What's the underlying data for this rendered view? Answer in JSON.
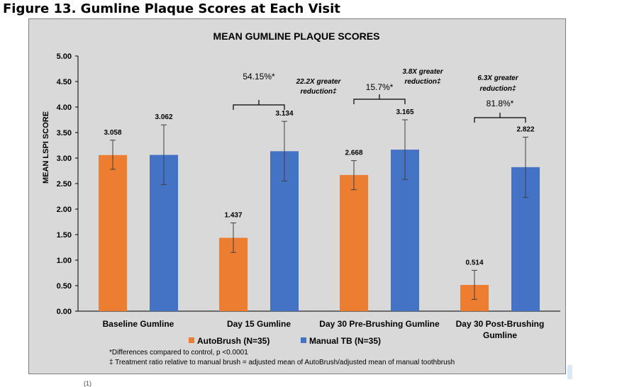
{
  "figure_title": "Figure 13. Gumline Plaque Scores at Each Visit",
  "chart_data": {
    "type": "bar",
    "title": "MEAN GUMLINE PLAQUE SCORES",
    "ylabel": "MEAN LSPI SCORE",
    "xlabel": "",
    "ylim": [
      0,
      5
    ],
    "yticks": [
      "0.00",
      "0.50",
      "1.00",
      "1.50",
      "2.00",
      "2.50",
      "3.00",
      "3.50",
      "4.00",
      "4.50",
      "5.00"
    ],
    "categories": [
      "Baseline Gumline",
      "Day 15 Gumline",
      "Day 30 Pre-Brushing Gumline",
      "Day 30  Post-Brushing Gumline"
    ],
    "series": [
      {
        "name": "AutoBrush (N=35)",
        "color": "#ed7d31",
        "values": [
          3.058,
          1.437,
          2.668,
          0.514
        ],
        "labels": [
          "3.058",
          "1.437",
          "2.668",
          "0.514"
        ],
        "error_low": [
          2.78,
          1.15,
          2.38,
          0.23
        ],
        "error_high": [
          3.35,
          1.73,
          2.95,
          0.8
        ]
      },
      {
        "name": "Manual TB (N=35)",
        "color": "#4472c4",
        "values": [
          3.062,
          3.134,
          3.165,
          2.822
        ],
        "labels": [
          "3.062",
          "3.134",
          "3.165",
          "2.822"
        ],
        "error_low": [
          2.48,
          2.55,
          2.58,
          2.23
        ],
        "error_high": [
          3.65,
          3.72,
          3.75,
          3.41
        ]
      }
    ],
    "comparisons": [
      {
        "category_index": 1,
        "percent": "54.15%*",
        "ratio_line1": "22.2X greater",
        "ratio_line2": "reduction‡"
      },
      {
        "category_index": 2,
        "percent": "15.7%*",
        "ratio_line1": "3.8X greater",
        "ratio_line2": "reduction‡"
      },
      {
        "category_index": 3,
        "percent": "81.8%*",
        "ratio_line1": "6.3X greater",
        "ratio_line2": "reduction‡"
      }
    ],
    "legend_position": "bottom",
    "grid": false,
    "footnotes": [
      "*Differences compared to control, p <0.0001",
      "‡ Treatment ratio relative to manual brush = adjusted mean of AutoBrush/adjusted mean of manual toothbrush"
    ]
  }
}
